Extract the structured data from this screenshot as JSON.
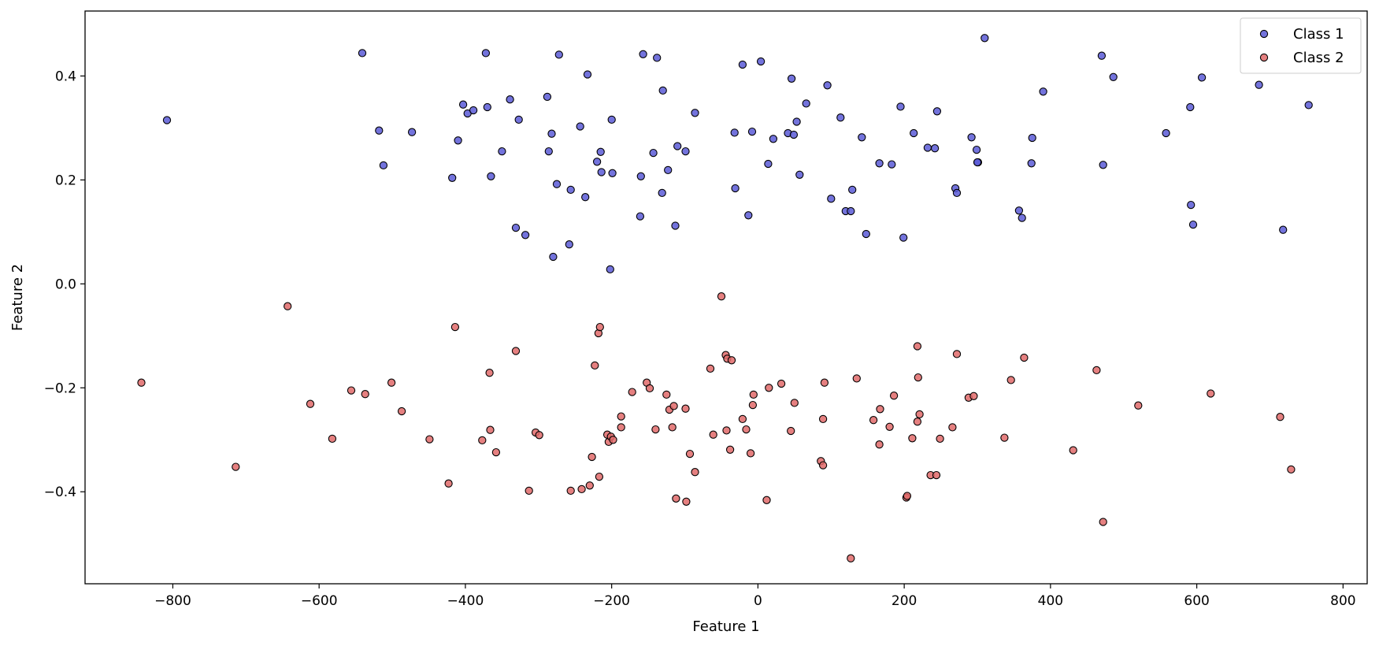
{
  "chart_data": {
    "type": "scatter",
    "title": "",
    "xlabel": "Feature 1",
    "ylabel": "Feature 2",
    "xlim": [
      -920,
      833
    ],
    "ylim": [
      -0.577,
      0.525
    ],
    "xticks": [
      -800,
      -600,
      -400,
      -200,
      0,
      200,
      400,
      600,
      800
    ],
    "yticks": [
      -0.4,
      -0.2,
      0.0,
      0.2,
      0.4
    ],
    "xtick_labels": [
      "−800",
      "−600",
      "−400",
      "−200",
      "0",
      "200",
      "400",
      "600",
      "800"
    ],
    "ytick_labels": [
      "−0.4",
      "−0.2",
      "0.0",
      "0.2",
      "0.4"
    ],
    "grid": false,
    "legend_position": "top-right",
    "series": [
      {
        "name": "Class 1",
        "color": "#5b5bd6",
        "points": [
          [
            -808,
            0.315
          ],
          [
            -541,
            0.444
          ],
          [
            -518,
            0.295
          ],
          [
            -512,
            0.228
          ],
          [
            -473,
            0.292
          ],
          [
            -418,
            0.204
          ],
          [
            -410,
            0.276
          ],
          [
            -403,
            0.345
          ],
          [
            -397,
            0.328
          ],
          [
            -389,
            0.334
          ],
          [
            -372,
            0.444
          ],
          [
            -370,
            0.34
          ],
          [
            -365,
            0.207
          ],
          [
            -350,
            0.255
          ],
          [
            -339,
            0.355
          ],
          [
            -331,
            0.108
          ],
          [
            -327,
            0.316
          ],
          [
            -318,
            0.094
          ],
          [
            -288,
            0.36
          ],
          [
            -286,
            0.255
          ],
          [
            -282,
            0.289
          ],
          [
            -280,
            0.052
          ],
          [
            -275,
            0.192
          ],
          [
            -272,
            0.441
          ],
          [
            -258,
            0.076
          ],
          [
            -256,
            0.181
          ],
          [
            -243,
            0.303
          ],
          [
            -236,
            0.167
          ],
          [
            -233,
            0.403
          ],
          [
            -220,
            0.235
          ],
          [
            -215,
            0.254
          ],
          [
            -214,
            0.215
          ],
          [
            -202,
            0.028
          ],
          [
            -200,
            0.316
          ],
          [
            -199,
            0.213
          ],
          [
            -161,
            0.13
          ],
          [
            -160,
            0.207
          ],
          [
            -157,
            0.442
          ],
          [
            -143,
            0.252
          ],
          [
            -138,
            0.435
          ],
          [
            -130,
            0.372
          ],
          [
            -131,
            0.175
          ],
          [
            -123,
            0.219
          ],
          [
            -113,
            0.112
          ],
          [
            -110,
            0.265
          ],
          [
            -99,
            0.255
          ],
          [
            -86,
            0.329
          ],
          [
            -32,
            0.291
          ],
          [
            -31,
            0.184
          ],
          [
            -21,
            0.422
          ],
          [
            -13,
            0.132
          ],
          [
            -8,
            0.293
          ],
          [
            4,
            0.428
          ],
          [
            14,
            0.231
          ],
          [
            21,
            0.279
          ],
          [
            41,
            0.29
          ],
          [
            46,
            0.395
          ],
          [
            49,
            0.287
          ],
          [
            53,
            0.312
          ],
          [
            57,
            0.21
          ],
          [
            66,
            0.347
          ],
          [
            95,
            0.382
          ],
          [
            100,
            0.164
          ],
          [
            113,
            0.32
          ],
          [
            120,
            0.14
          ],
          [
            127,
            0.14
          ],
          [
            129,
            0.181
          ],
          [
            142,
            0.282
          ],
          [
            148,
            0.096
          ],
          [
            166,
            0.232
          ],
          [
            183,
            0.23
          ],
          [
            195,
            0.341
          ],
          [
            199,
            0.089
          ],
          [
            213,
            0.29
          ],
          [
            232,
            0.262
          ],
          [
            242,
            0.261
          ],
          [
            245,
            0.332
          ],
          [
            270,
            0.184
          ],
          [
            272,
            0.175
          ],
          [
            292,
            0.282
          ],
          [
            299,
            0.258
          ],
          [
            301,
            0.234
          ],
          [
            300,
            0.234
          ],
          [
            310,
            0.473
          ],
          [
            357,
            0.141
          ],
          [
            361,
            0.127
          ],
          [
            374,
            0.232
          ],
          [
            375,
            0.281
          ],
          [
            390,
            0.37
          ],
          [
            470,
            0.439
          ],
          [
            472,
            0.229
          ],
          [
            486,
            0.398
          ],
          [
            558,
            0.29
          ],
          [
            591,
            0.34
          ],
          [
            592,
            0.152
          ],
          [
            595,
            0.114
          ],
          [
            607,
            0.397
          ],
          [
            685,
            0.383
          ],
          [
            718,
            0.104
          ],
          [
            753,
            0.344
          ]
        ]
      },
      {
        "name": "Class 2",
        "color": "#e06a6a",
        "points": [
          [
            -843,
            -0.19
          ],
          [
            -714,
            -0.352
          ],
          [
            -643,
            -0.043
          ],
          [
            -612,
            -0.231
          ],
          [
            -582,
            -0.298
          ],
          [
            -556,
            -0.205
          ],
          [
            -537,
            -0.212
          ],
          [
            -501,
            -0.19
          ],
          [
            -487,
            -0.245
          ],
          [
            -449,
            -0.299
          ],
          [
            -423,
            -0.384
          ],
          [
            -414,
            -0.083
          ],
          [
            -377,
            -0.301
          ],
          [
            -366,
            -0.281
          ],
          [
            -367,
            -0.171
          ],
          [
            -358,
            -0.324
          ],
          [
            -331,
            -0.129
          ],
          [
            -313,
            -0.398
          ],
          [
            -304,
            -0.286
          ],
          [
            -299,
            -0.291
          ],
          [
            -256,
            -0.398
          ],
          [
            -241,
            -0.395
          ],
          [
            -230,
            -0.388
          ],
          [
            -227,
            -0.333
          ],
          [
            -223,
            -0.157
          ],
          [
            -218,
            -0.095
          ],
          [
            -216,
            -0.083
          ],
          [
            -217,
            -0.371
          ],
          [
            -206,
            -0.29
          ],
          [
            -204,
            -0.304
          ],
          [
            -201,
            -0.294
          ],
          [
            -198,
            -0.3
          ],
          [
            -187,
            -0.276
          ],
          [
            -187,
            -0.255
          ],
          [
            -172,
            -0.208
          ],
          [
            -152,
            -0.19
          ],
          [
            -148,
            -0.201
          ],
          [
            -140,
            -0.28
          ],
          [
            -125,
            -0.213
          ],
          [
            -121,
            -0.242
          ],
          [
            -117,
            -0.276
          ],
          [
            -115,
            -0.235
          ],
          [
            -112,
            -0.413
          ],
          [
            -99,
            -0.24
          ],
          [
            -98,
            -0.419
          ],
          [
            -93,
            -0.327
          ],
          [
            -86,
            -0.362
          ],
          [
            -65,
            -0.163
          ],
          [
            -61,
            -0.29
          ],
          [
            -50,
            -0.024
          ],
          [
            -44,
            -0.137
          ],
          [
            -43,
            -0.282
          ],
          [
            -42,
            -0.144
          ],
          [
            -38,
            -0.319
          ],
          [
            -36,
            -0.147
          ],
          [
            -21,
            -0.26
          ],
          [
            -16,
            -0.28
          ],
          [
            -10,
            -0.326
          ],
          [
            -7,
            -0.233
          ],
          [
            -6,
            -0.213
          ],
          [
            12,
            -0.416
          ],
          [
            15,
            -0.2
          ],
          [
            32,
            -0.192
          ],
          [
            45,
            -0.283
          ],
          [
            50,
            -0.229
          ],
          [
            86,
            -0.341
          ],
          [
            89,
            -0.349
          ],
          [
            89,
            -0.26
          ],
          [
            91,
            -0.19
          ],
          [
            127,
            -0.528
          ],
          [
            135,
            -0.182
          ],
          [
            158,
            -0.262
          ],
          [
            166,
            -0.309
          ],
          [
            167,
            -0.241
          ],
          [
            180,
            -0.275
          ],
          [
            186,
            -0.215
          ],
          [
            203,
            -0.411
          ],
          [
            204,
            -0.408
          ],
          [
            211,
            -0.297
          ],
          [
            218,
            -0.12
          ],
          [
            219,
            -0.18
          ],
          [
            218,
            -0.265
          ],
          [
            221,
            -0.251
          ],
          [
            236,
            -0.368
          ],
          [
            244,
            -0.368
          ],
          [
            249,
            -0.298
          ],
          [
            266,
            -0.276
          ],
          [
            272,
            -0.135
          ],
          [
            288,
            -0.219
          ],
          [
            295,
            -0.216
          ],
          [
            337,
            -0.296
          ],
          [
            346,
            -0.185
          ],
          [
            364,
            -0.142
          ],
          [
            431,
            -0.32
          ],
          [
            463,
            -0.166
          ],
          [
            472,
            -0.458
          ],
          [
            520,
            -0.234
          ],
          [
            619,
            -0.211
          ],
          [
            714,
            -0.256
          ],
          [
            729,
            -0.357
          ]
        ]
      }
    ]
  }
}
